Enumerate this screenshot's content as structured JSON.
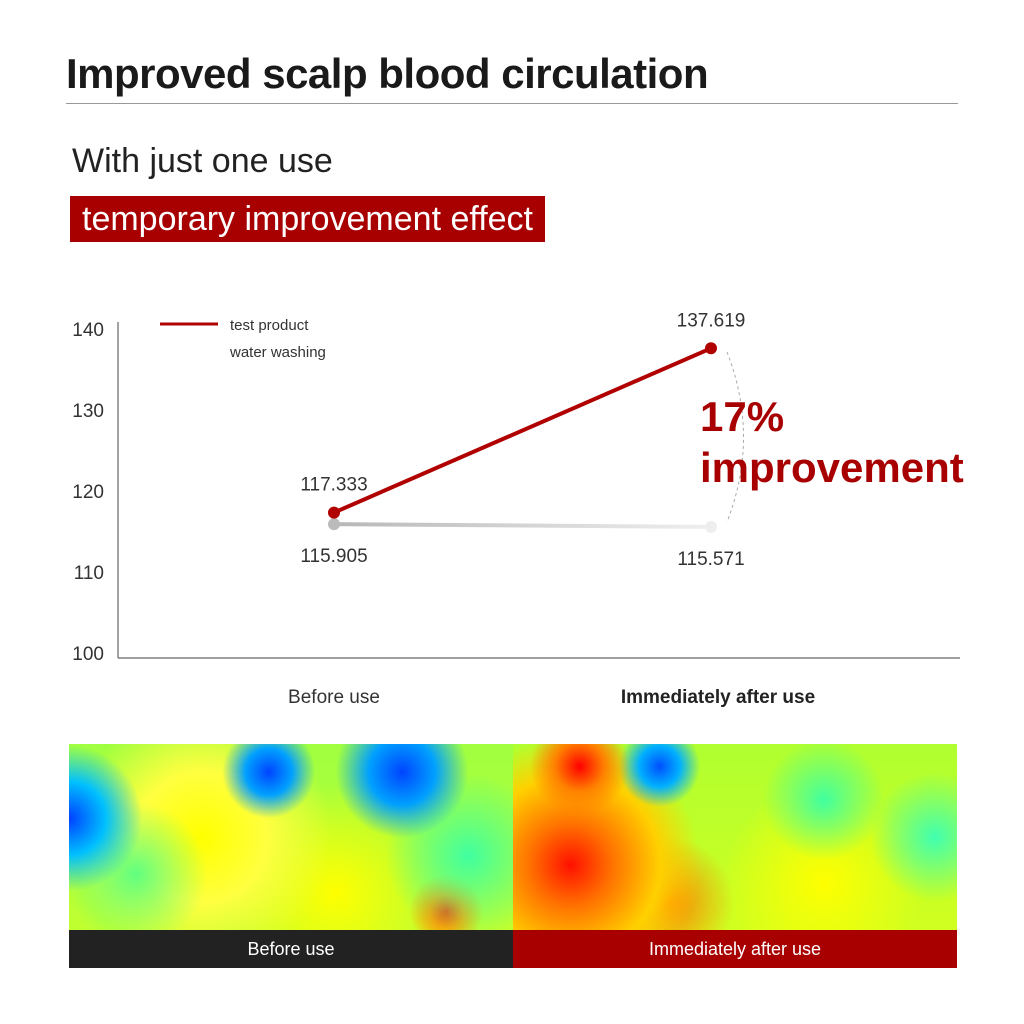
{
  "title": "Improved scalp blood circulation",
  "subtitle": "With just one use",
  "banner": "temporary improvement effect",
  "chart_data": {
    "type": "line",
    "categories": [
      "Before use",
      "Immediately after use"
    ],
    "series": [
      {
        "name": "test product",
        "values": [
          117.333,
          137.619
        ],
        "labels": [
          "117.333",
          "137.619"
        ],
        "color": "#b00000"
      },
      {
        "name": "water washing",
        "values": [
          115.905,
          115.571
        ],
        "labels": [
          "115.905",
          "115.571"
        ],
        "color": "#bbbbbb"
      }
    ],
    "ylim": [
      100,
      140
    ],
    "yticks": [
      "100",
      "110",
      "120",
      "130",
      "140"
    ],
    "legend": "top-left",
    "annotation": {
      "percent": "17%",
      "text": "improvement"
    }
  },
  "heatmaps": {
    "before": "Before use",
    "after": "Immediately after use"
  },
  "colors": {
    "accent": "#a80000",
    "dark": "#222222"
  }
}
